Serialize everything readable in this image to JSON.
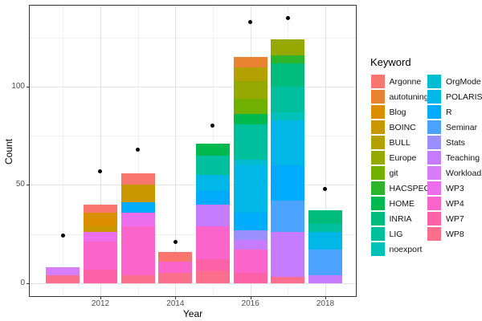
{
  "chart_data": {
    "type": "bar",
    "stacked": true,
    "title": "",
    "xlabel": "Year",
    "ylabel": "Count",
    "x_tick_labels": [
      "2012",
      "2014",
      "2016",
      "2018"
    ],
    "x_tick_years": [
      2012,
      2014,
      2016,
      2018
    ],
    "y_tick_labels": [
      "0",
      "50",
      "100"
    ],
    "y_major": [
      0,
      50,
      100
    ],
    "y_minor": [
      25,
      75,
      125
    ],
    "ylim": [
      0,
      141
    ],
    "years": [
      2011,
      2012,
      2013,
      2014,
      2015,
      2016,
      2017,
      2018
    ],
    "grid": true,
    "panel_border": true,
    "legend_position": "right",
    "bars": [
      {
        "year": 2011,
        "total": 8,
        "segments": [
          {
            "keyword": "WP8",
            "value": 4
          },
          {
            "keyword": "Workload",
            "value": 4
          }
        ]
      },
      {
        "year": 2012,
        "total": 40,
        "segments": [
          {
            "keyword": "WP7",
            "value": 7
          },
          {
            "keyword": "WP4",
            "value": 14
          },
          {
            "keyword": "WP3",
            "value": 5
          },
          {
            "keyword": "BOINC",
            "value": 3
          },
          {
            "keyword": "Blog",
            "value": 7
          },
          {
            "keyword": "Argonne",
            "value": 4
          }
        ]
      },
      {
        "year": 2013,
        "total": 56,
        "segments": [
          {
            "keyword": "WP8",
            "value": 4
          },
          {
            "keyword": "WP4",
            "value": 25
          },
          {
            "keyword": "WP3",
            "value": 7
          },
          {
            "keyword": "R",
            "value": 5
          },
          {
            "keyword": "BOINC",
            "value": 9
          },
          {
            "keyword": "Argonne",
            "value": 6
          }
        ]
      },
      {
        "year": 2014,
        "total": 16,
        "segments": [
          {
            "keyword": "WP8",
            "value": 5
          },
          {
            "keyword": "WP4",
            "value": 6
          },
          {
            "keyword": "Argonne",
            "value": 5
          }
        ]
      },
      {
        "year": 2015,
        "total": 71,
        "segments": [
          {
            "keyword": "WP8",
            "value": 6
          },
          {
            "keyword": "WP7",
            "value": 6
          },
          {
            "keyword": "WP4",
            "value": 17
          },
          {
            "keyword": "Teaching",
            "value": 11
          },
          {
            "keyword": "R",
            "value": 7
          },
          {
            "keyword": "POLARIS",
            "value": 8
          },
          {
            "keyword": "LIG",
            "value": 10
          },
          {
            "keyword": "HOME",
            "value": 6
          }
        ]
      },
      {
        "year": 2016,
        "total": 115,
        "segments": [
          {
            "keyword": "WP7",
            "value": 5
          },
          {
            "keyword": "WP4",
            "value": 12
          },
          {
            "keyword": "Teaching",
            "value": 5
          },
          {
            "keyword": "Stats",
            "value": 5
          },
          {
            "keyword": "R",
            "value": 9
          },
          {
            "keyword": "POLARIS",
            "value": 24
          },
          {
            "keyword": "OrgMode",
            "value": 3
          },
          {
            "keyword": "LIG",
            "value": 18
          },
          {
            "keyword": "HOME",
            "value": 5
          },
          {
            "keyword": "git",
            "value": 8
          },
          {
            "keyword": "Europe",
            "value": 9
          },
          {
            "keyword": "BULL",
            "value": 7
          },
          {
            "keyword": "autotuning",
            "value": 5
          }
        ]
      },
      {
        "year": 2017,
        "total": 124,
        "segments": [
          {
            "keyword": "WP8",
            "value": 3
          },
          {
            "keyword": "Teaching",
            "value": 23
          },
          {
            "keyword": "Seminar",
            "value": 16
          },
          {
            "keyword": "R",
            "value": 18
          },
          {
            "keyword": "POLARIS",
            "value": 23
          },
          {
            "keyword": "noexport",
            "value": 4
          },
          {
            "keyword": "LIG",
            "value": 13
          },
          {
            "keyword": "INRIA",
            "value": 12
          },
          {
            "keyword": "HACSPECIS",
            "value": 4
          },
          {
            "keyword": "Europe",
            "value": 8
          }
        ]
      },
      {
        "year": 2018,
        "total": 37,
        "segments": [
          {
            "keyword": "Teaching",
            "value": 4
          },
          {
            "keyword": "Seminar",
            "value": 13
          },
          {
            "keyword": "POLARIS",
            "value": 9
          },
          {
            "keyword": "LIG",
            "value": 4
          },
          {
            "keyword": "INRIA",
            "value": 7
          }
        ]
      }
    ],
    "points": [
      {
        "year": 2011,
        "value": 24
      },
      {
        "year": 2012,
        "value": 57
      },
      {
        "year": 2013,
        "value": 68
      },
      {
        "year": 2014,
        "value": 21
      },
      {
        "year": 2015,
        "value": 80
      },
      {
        "year": 2016,
        "value": 133
      },
      {
        "year": 2017,
        "value": 135
      },
      {
        "year": 2018,
        "value": 48
      }
    ],
    "point_color": "#000000",
    "legend": {
      "title": "Keyword",
      "columns": [
        12,
        11
      ],
      "entries": [
        {
          "label": "Argonne",
          "color": "#F8766D"
        },
        {
          "label": "autotuning",
          "color": "#EA8331"
        },
        {
          "label": "Blog",
          "color": "#DB8E00"
        },
        {
          "label": "BOINC",
          "color": "#C99800"
        },
        {
          "label": "BULL",
          "color": "#B2A100"
        },
        {
          "label": "Europe",
          "color": "#95A900"
        },
        {
          "label": "git",
          "color": "#72B000"
        },
        {
          "label": "HACSPECIS",
          "color": "#2CB52C"
        },
        {
          "label": "HOME",
          "color": "#00B94E"
        },
        {
          "label": "INRIA",
          "color": "#00BC7C"
        },
        {
          "label": "LIG",
          "color": "#00BF9C"
        },
        {
          "label": "noexport",
          "color": "#00C1BA"
        },
        {
          "label": "OrgMode",
          "color": "#00BDD2"
        },
        {
          "label": "POLARIS",
          "color": "#00B7E8"
        },
        {
          "label": "R",
          "color": "#00ABFB"
        },
        {
          "label": "Seminar",
          "color": "#4BA2FF"
        },
        {
          "label": "Stats",
          "color": "#9A8FFF"
        },
        {
          "label": "Teaching",
          "color": "#C57CFF"
        },
        {
          "label": "Workload",
          "color": "#D67DF9"
        },
        {
          "label": "WP3",
          "color": "#ED6EEC"
        },
        {
          "label": "WP4",
          "color": "#FB64CA"
        },
        {
          "label": "WP7",
          "color": "#FD62A6"
        },
        {
          "label": "WP8",
          "color": "#FC6F8C"
        }
      ]
    }
  }
}
